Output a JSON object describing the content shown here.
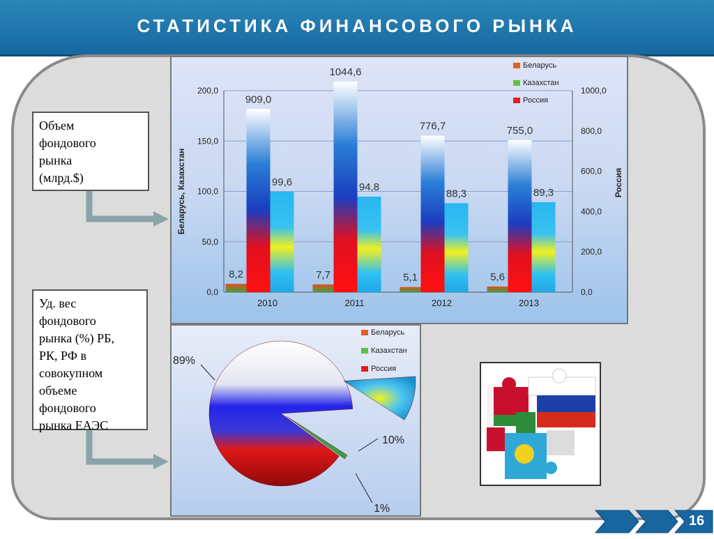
{
  "header": {
    "title": "СТАТИСТИКА ФИНАНСОВОГО РЫНКА"
  },
  "labels": {
    "volume": "Объем\nфондового\nрынка\n(млрд.$)",
    "share": "Уд. вес\nфондового\nрынка (%)  РБ,\nРК, РФ в\nсовокупном\nобъеме\nфондового\nрынка ЕАЭС"
  },
  "page_number": "16",
  "colors": {
    "banner": "#1f77ad",
    "belarus": "#e06020",
    "kazakhstan": "#60c040",
    "russia": "#e02020"
  },
  "chart_data": [
    {
      "type": "bar",
      "categories": [
        "2010",
        "2011",
        "2012",
        "2013"
      ],
      "series": [
        {
          "name": "Беларусь",
          "axis": "left",
          "values": [
            8.2,
            7.7,
            5.1,
            5.6
          ],
          "labels": [
            "8,2",
            "7,7",
            "5,1",
            "5,6"
          ]
        },
        {
          "name": "Казахстан",
          "axis": "left",
          "values": [
            99.6,
            94.8,
            88.3,
            89.3
          ],
          "labels": [
            "99,6",
            "94,8",
            "88,3",
            "89,3"
          ]
        },
        {
          "name": "Россия",
          "axis": "right",
          "values": [
            909.0,
            1044.6,
            776.7,
            755.0
          ],
          "labels": [
            "909,0",
            "1044,6",
            "776,7",
            "755,0"
          ]
        }
      ],
      "ylabel": "Беларусь, Казахстан",
      "y2label": "Россия",
      "ylim": [
        0,
        200
      ],
      "y2lim": [
        0,
        1000
      ],
      "yticks": [
        "0,0",
        "50,0",
        "100,0",
        "150,0",
        "200,0"
      ],
      "y2ticks": [
        "0,0",
        "200,0",
        "400,0",
        "600,0",
        "800,0",
        "1000,0"
      ],
      "grid": true,
      "legend": "top-right"
    },
    {
      "type": "pie",
      "slices": [
        {
          "name": "Россия",
          "value": 89,
          "label": "89%"
        },
        {
          "name": "Казахстан",
          "value": 10,
          "label": "10%"
        },
        {
          "name": "Беларусь",
          "value": 1,
          "label": "1%"
        }
      ],
      "legend": [
        "Беларусь",
        "Казахстан",
        "Россия"
      ],
      "legend_position": "top-right"
    }
  ]
}
